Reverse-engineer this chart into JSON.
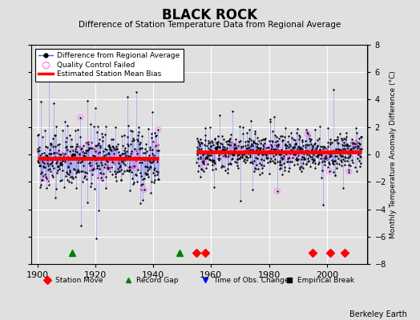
{
  "title": "BLACK ROCK",
  "subtitle": "Difference of Station Temperature Data from Regional Average",
  "ylabel_right": "Monthly Temperature Anomaly Difference (°C)",
  "xlim": [
    1898,
    2014
  ],
  "ylim": [
    -8,
    8
  ],
  "yticks": [
    -8,
    -6,
    -4,
    -2,
    0,
    2,
    4,
    6,
    8
  ],
  "xticks": [
    1900,
    1920,
    1940,
    1960,
    1980,
    2000
  ],
  "background_color": "#e0e0e0",
  "grid_color": "#ffffff",
  "line_color": "#5555ff",
  "dot_color": "#000000",
  "qc_color": "#ff88ff",
  "bias_color": "#ff0000",
  "seed": 42,
  "station_moves": [
    1955,
    1958,
    1995,
    2001,
    2006
  ],
  "record_gaps": [
    1912,
    1949
  ],
  "obs_changes": [],
  "emp_breaks": [],
  "gap_start": 1942,
  "gap_end": 1955,
  "segment1_start": 1900,
  "segment1_end": 1942,
  "segment2_start": 1955,
  "segment2_end": 2012,
  "bias1": -0.3,
  "bias2": 0.2,
  "berkeley_earth_text": "Berkeley Earth",
  "marker_y": -7.2,
  "seg1_std": 1.1,
  "seg2_std": 0.75,
  "seg1_spike_n": 18,
  "seg2_spike_n": 12,
  "qc1_n": 20,
  "qc2_n": 15
}
